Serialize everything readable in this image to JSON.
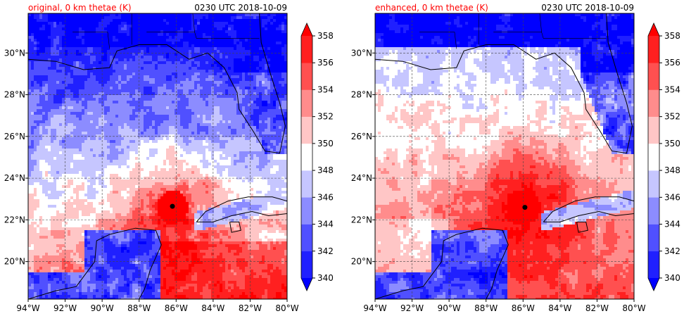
{
  "chart_data": [
    {
      "type": "heatmap",
      "title": "original, 0 km thetae (K)",
      "time_label": "0230 UTC 2018-10-09",
      "xlabel": "",
      "ylabel": "",
      "x_ticks": [
        "94°W",
        "92°W",
        "90°W",
        "88°W",
        "86°W",
        "84°W",
        "82°W",
        "80°W"
      ],
      "x_values": [
        -94,
        -92,
        -90,
        -88,
        -86,
        -84,
        -82,
        -80
      ],
      "y_ticks": [
        "20°N",
        "22°N",
        "24°N",
        "26°N",
        "28°N",
        "30°N"
      ],
      "y_values": [
        20,
        22,
        24,
        26,
        28,
        30
      ],
      "xlim": [
        -94,
        -80
      ],
      "ylim": [
        18.2,
        31.9
      ],
      "grid": true,
      "storm_center": {
        "lon": -86.2,
        "lat": 22.65
      },
      "colorbar": {
        "levels": [
          340,
          342,
          344,
          346,
          348,
          350,
          352,
          354,
          356,
          358
        ],
        "tick_labels": [
          "340",
          "342",
          "344",
          "346",
          "348",
          "350",
          "352",
          "354",
          "356",
          "358"
        ],
        "colors": [
          "#0000ff",
          "#2020ff",
          "#5050ff",
          "#8c8cff",
          "#c6c6ff",
          "#ffffff",
          "#ffc6c6",
          "#ff8c8c",
          "#ff5050",
          "#ff2020",
          "#ff0000"
        ],
        "extend": "both"
      }
    },
    {
      "type": "heatmap",
      "title": "enhanced, 0 km thetae (K)",
      "time_label": "0230 UTC 2018-10-09",
      "xlabel": "",
      "ylabel": "",
      "x_ticks": [
        "94°W",
        "92°W",
        "90°W",
        "88°W",
        "86°W",
        "84°W",
        "82°W",
        "80°W"
      ],
      "x_values": [
        -94,
        -92,
        -90,
        -88,
        -86,
        -84,
        -82,
        -80
      ],
      "y_ticks": [
        "20°N",
        "22°N",
        "24°N",
        "26°N",
        "28°N",
        "30°N"
      ],
      "y_values": [
        20,
        22,
        24,
        26,
        28,
        30
      ],
      "xlim": [
        -94,
        -80
      ],
      "ylim": [
        18.2,
        31.9
      ],
      "grid": true,
      "storm_center": {
        "lon": -85.9,
        "lat": 22.6
      },
      "colorbar": {
        "levels": [
          340,
          342,
          344,
          346,
          348,
          350,
          352,
          354,
          356,
          358
        ],
        "tick_labels": [
          "340",
          "342",
          "344",
          "346",
          "348",
          "350",
          "352",
          "354",
          "356",
          "358"
        ],
        "colors": [
          "#0000ff",
          "#2020ff",
          "#5050ff",
          "#8c8cff",
          "#c6c6ff",
          "#ffffff",
          "#ffc6c6",
          "#ff8c8c",
          "#ff5050",
          "#ff2020",
          "#ff0000"
        ],
        "extend": "both"
      }
    }
  ]
}
